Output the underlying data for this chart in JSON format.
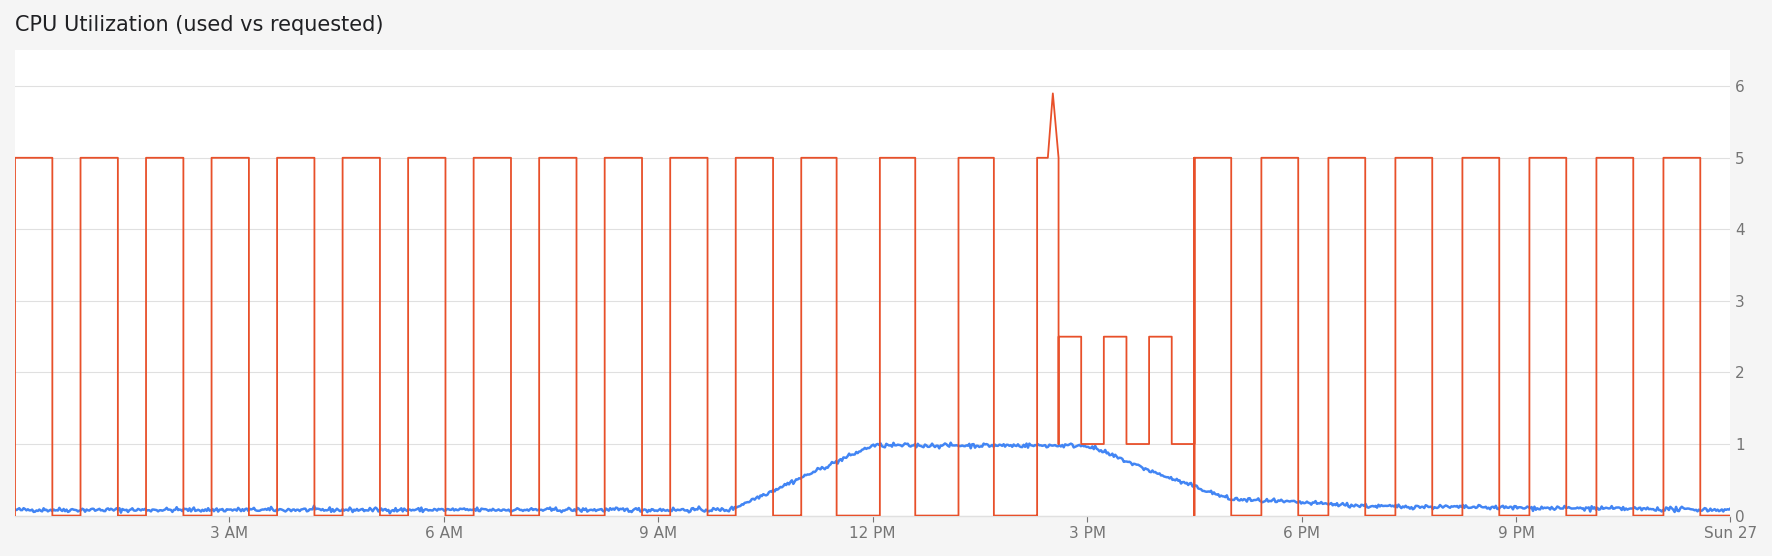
{
  "title": "CPU Utilization (used vs requested)",
  "title_fontsize": 15,
  "title_color": "#202124",
  "background_color": "#f5f5f5",
  "plot_background_color": "#ffffff",
  "x_tick_labels": [
    "3 AM",
    "6 AM",
    "9 AM",
    "12 PM",
    "3 PM",
    "6 PM",
    "9 PM",
    "Sun 27"
  ],
  "x_tick_positions": [
    3,
    6,
    9,
    12,
    15,
    18,
    21,
    24
  ],
  "ylim": [
    0,
    6.5
  ],
  "xlim": [
    0,
    24
  ],
  "y_ticks": [
    0,
    1,
    2,
    3,
    4,
    5,
    6
  ],
  "orange_color": "#e8502a",
  "blue_color": "#4285f4",
  "grid_color": "#e0e0e0",
  "tick_color": "#757575"
}
